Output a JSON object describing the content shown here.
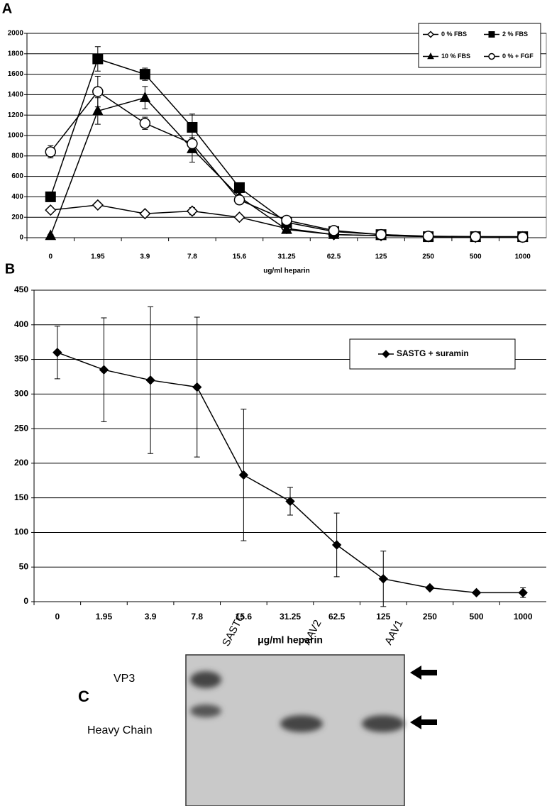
{
  "chart_data": [
    {
      "type": "line",
      "panel_label": "A",
      "x_label": "ug/ml heparin",
      "categories": [
        "0",
        "1.95",
        "3.9",
        "7.8",
        "15.6",
        "31.25",
        "62.5",
        "125",
        "250",
        "500",
        "1000"
      ],
      "ylim": [
        0,
        2000
      ],
      "yticks": [
        0,
        200,
        400,
        600,
        800,
        1000,
        1200,
        1400,
        1600,
        1800,
        2000
      ],
      "grid": true,
      "legend": "upper right",
      "series": [
        {
          "name": "0 % FBS",
          "color": "#000000",
          "marker": "diamond-open",
          "values": [
            270,
            320,
            235,
            260,
            200,
            90,
            30,
            20,
            10,
            5,
            5
          ],
          "errors": [
            20,
            20,
            20,
            35,
            15,
            10,
            5,
            5,
            5,
            3,
            3
          ]
        },
        {
          "name": "2 % FBS",
          "color": "#000000",
          "marker": "square",
          "values": [
            400,
            1750,
            1600,
            1080,
            490,
            150,
            60,
            30,
            10,
            10,
            10
          ],
          "errors": [
            30,
            120,
            60,
            130,
            40,
            20,
            10,
            5,
            5,
            3,
            3
          ]
        },
        {
          "name": "10 % FBS",
          "color": "#000000",
          "marker": "triangle",
          "values": [
            20,
            1240,
            1370,
            870,
            400,
            80,
            30,
            20,
            10,
            5,
            5
          ],
          "errors": [
            10,
            130,
            110,
            130,
            40,
            15,
            10,
            5,
            5,
            3,
            3
          ]
        },
        {
          "name": "0 % + FGF",
          "color": "#000000",
          "marker": "circle-open",
          "values": [
            840,
            1430,
            1120,
            920,
            370,
            170,
            70,
            30,
            15,
            10,
            5
          ],
          "errors": [
            60,
            150,
            60,
            60,
            40,
            20,
            10,
            5,
            5,
            3,
            3
          ]
        }
      ]
    },
    {
      "type": "line",
      "panel_label": "B",
      "x_label": "μg/ml heparin",
      "categories": [
        "0",
        "1.95",
        "3.9",
        "7.8",
        "15.6",
        "31.25",
        "62.5",
        "125",
        "250",
        "500",
        "1000"
      ],
      "ylim": [
        0,
        450
      ],
      "yticks": [
        0,
        50,
        100,
        150,
        200,
        250,
        300,
        350,
        400,
        450
      ],
      "grid": true,
      "legend": "upper right",
      "series": [
        {
          "name": "SASTG + suramin",
          "color": "#000000",
          "marker": "diamond",
          "values": [
            360,
            335,
            320,
            310,
            183,
            145,
            82,
            33,
            20,
            13,
            13
          ],
          "errors": [
            38,
            75,
            106,
            101,
            95,
            20,
            46,
            40,
            0,
            0,
            7
          ]
        }
      ]
    }
  ],
  "gel": {
    "panel_label": "C",
    "lanes": [
      "SASTG",
      "AAV2",
      "AAV1"
    ],
    "bands": [
      "VP3",
      "Heavy Chain"
    ]
  }
}
